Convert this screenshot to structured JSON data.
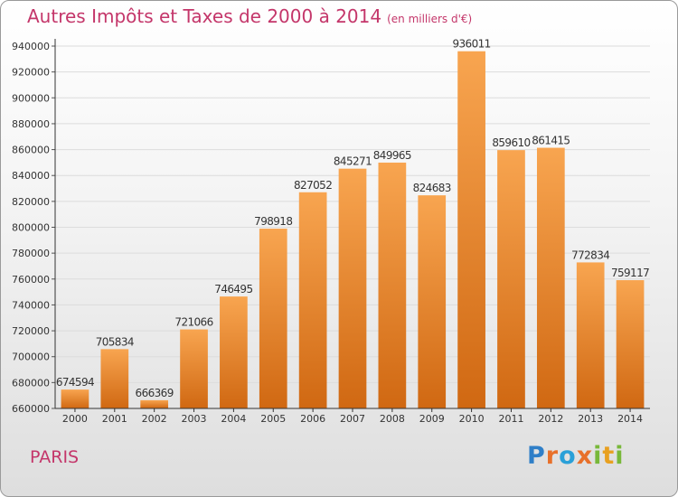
{
  "title": "Autres Impôts et Taxes de 2000 à 2014",
  "unit_note": "(en milliers d'€)",
  "location": "PARIS",
  "brand": {
    "text": "Proxiti",
    "colors": [
      "#2f7fc8",
      "#e8702a",
      "#2aa0d8",
      "#e8702a",
      "#78b83a",
      "#e8a020",
      "#78b83a"
    ]
  },
  "colors": {
    "title": "#c4366a",
    "bar_top": "#f8a550",
    "bar_bottom": "#d06812",
    "grid": "#dcdcdc"
  },
  "chart_data": {
    "type": "bar",
    "categories": [
      "2000",
      "2001",
      "2002",
      "2003",
      "2004",
      "2005",
      "2006",
      "2007",
      "2008",
      "2009",
      "2010",
      "2011",
      "2012",
      "2013",
      "2014"
    ],
    "values": [
      674594,
      705834,
      666369,
      721066,
      746495,
      798918,
      827052,
      845271,
      849965,
      824683,
      936011,
      859610,
      861415,
      772834,
      759117
    ],
    "ylim": [
      660000,
      940000
    ],
    "yticks": [
      660000,
      680000,
      700000,
      720000,
      740000,
      760000,
      780000,
      800000,
      820000,
      840000,
      860000,
      880000,
      900000,
      920000,
      940000
    ],
    "ytick_labels": [
      "660000",
      "680000",
      "700000",
      "720000",
      "740000",
      "760000",
      "780000",
      "800000",
      "820000",
      "840000",
      "860000",
      "880000",
      "900000",
      "920000",
      "940000"
    ],
    "data_labels": [
      "674594",
      "705834",
      "666369",
      "721066",
      "746495",
      "798918",
      "827052",
      "845271",
      "849965",
      "824683",
      "936011",
      "859610",
      "861415",
      "772834",
      "759117"
    ],
    "title": "Autres Impôts et Taxes de 2000 à 2014",
    "xlabel": "",
    "ylabel": "",
    "grid": true
  }
}
